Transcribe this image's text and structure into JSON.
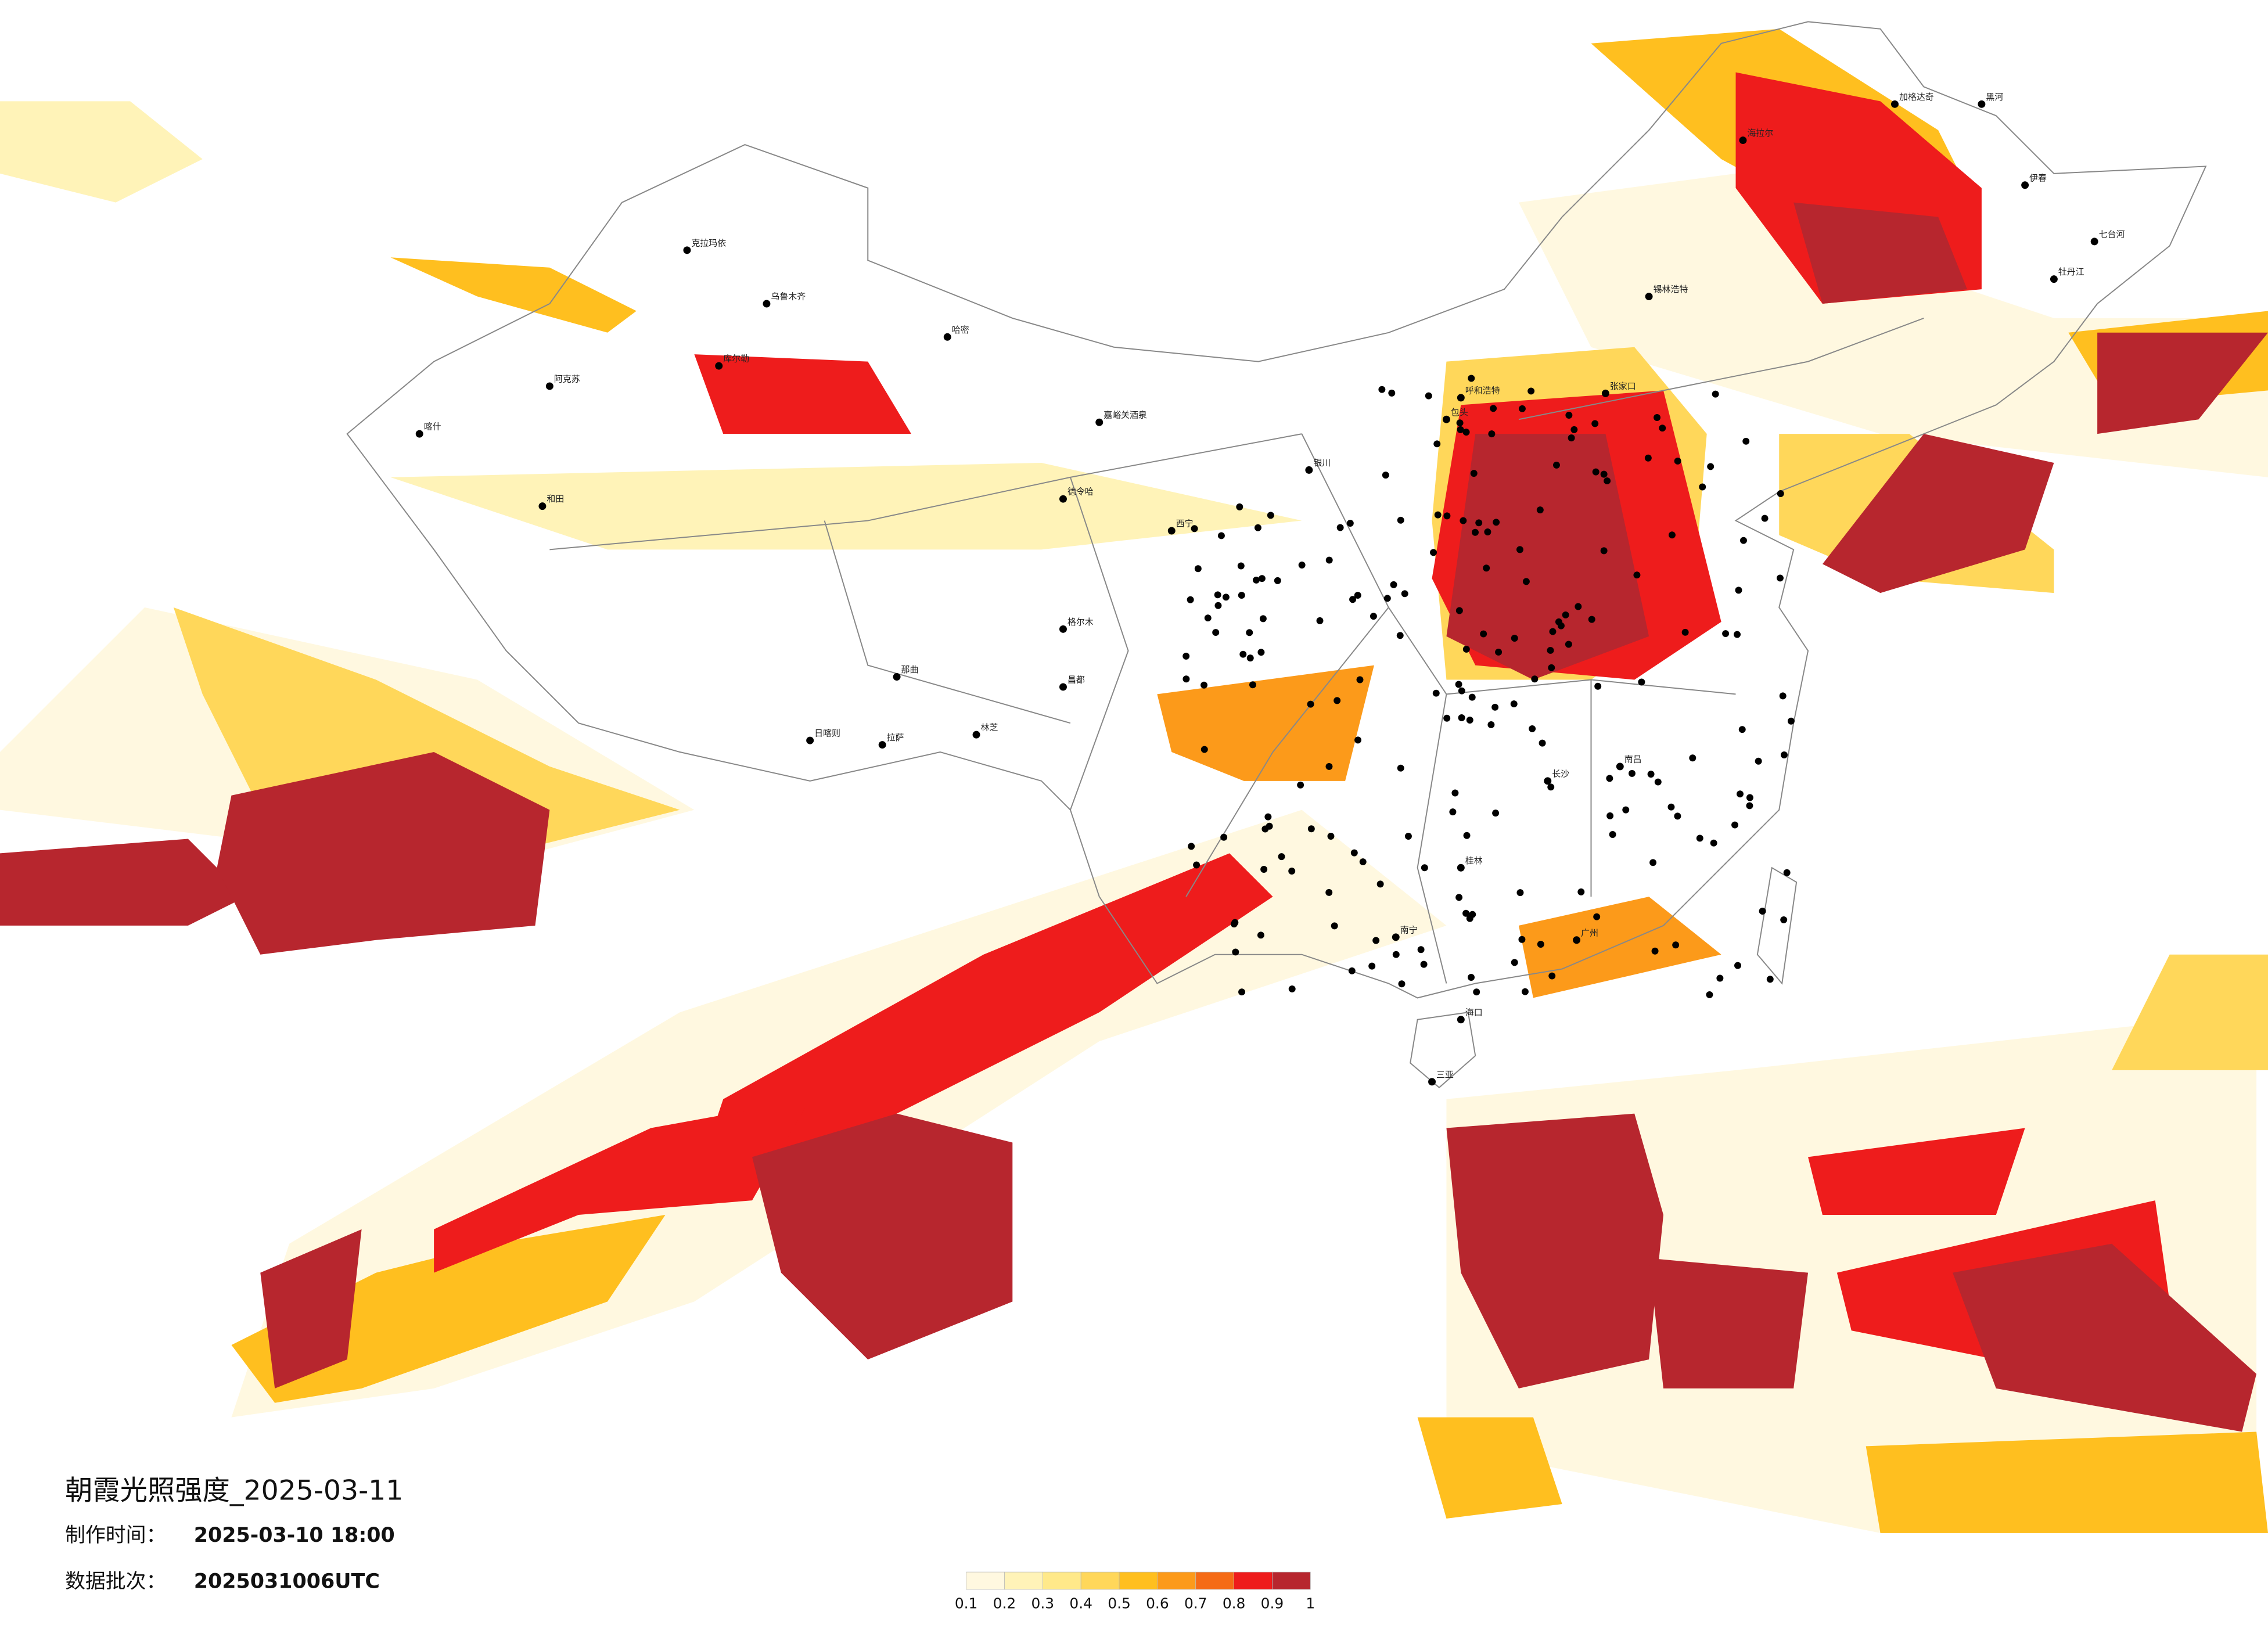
{
  "title": "朝霞光照强度_2025-03-11",
  "made_label": "制作时间：",
  "made_time": "2025-03-10 18:00",
  "batch_label": "数据批次：",
  "batch": "2025031006UTC",
  "legend": {
    "colors": [
      "#fff8e0",
      "#fff3b8",
      "#ffe98a",
      "#ffd75a",
      "#ffbf1f",
      "#fc9a1a",
      "#f56b16",
      "#ee1c1c",
      "#b7262e"
    ],
    "ticks": [
      0.1,
      0.2,
      0.3,
      0.4,
      0.5,
      0.6,
      0.7,
      0.8,
      0.9,
      1
    ]
  },
  "cities": [
    "克拉玛依",
    "乌鲁木齐",
    "哈密",
    "库尔勒",
    "阿克苏",
    "喀什",
    "和田",
    "嘉峪关酒泉",
    "德令哈",
    "格尔木",
    "那曲",
    "日喀则",
    "拉萨",
    "林芝",
    "昌都",
    "西宁",
    "银川",
    "呼和浩特",
    "包头",
    "张家口",
    "锡林浩特",
    "海拉尔",
    "加格达奇",
    "黑河",
    "伊春",
    "七台河",
    "牡丹江",
    "长沙",
    "南昌",
    "桂林",
    "南宁",
    "广州",
    "海口",
    "三亚"
  ]
}
